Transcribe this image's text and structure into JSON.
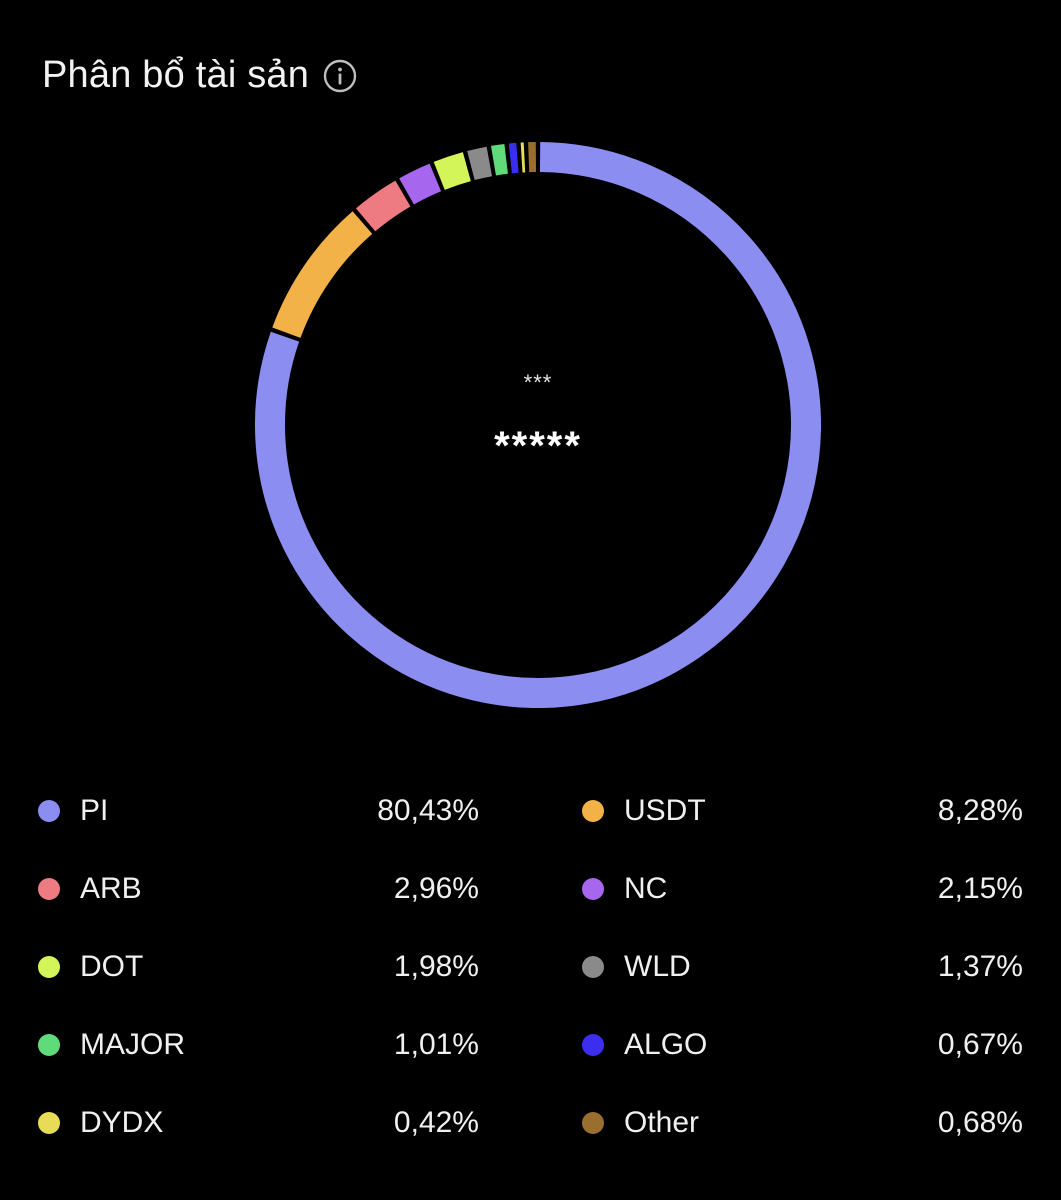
{
  "header": {
    "title": "Phân bổ tài sản",
    "info_icon": "info-circle-icon"
  },
  "center": {
    "label": "***",
    "value": "*****"
  },
  "colors": {
    "background": "#000000",
    "gap": "#000000"
  },
  "chart_data": {
    "type": "pie",
    "title": "",
    "categories": [
      "PI",
      "USDT",
      "ARB",
      "NC",
      "DOT",
      "WLD",
      "MAJOR",
      "ALGO",
      "DYDX",
      "Other"
    ],
    "values": [
      80.43,
      8.28,
      2.96,
      2.15,
      1.98,
      1.37,
      1.01,
      0.67,
      0.42,
      0.68
    ],
    "colors": [
      "#8b8ef0",
      "#f2b247",
      "#ef7b82",
      "#a667ee",
      "#d3f55a",
      "#8a8a8a",
      "#5fdb7a",
      "#3b2ef0",
      "#e8db55",
      "#9a6e2e"
    ],
    "style": "donut",
    "start": "top",
    "direction": "clockwise"
  },
  "legend": {
    "items": [
      {
        "name": "PI",
        "pct": "80,43%",
        "color": "#8b8ef0"
      },
      {
        "name": "USDT",
        "pct": "8,28%",
        "color": "#f2b247"
      },
      {
        "name": "ARB",
        "pct": "2,96%",
        "color": "#ef7b82"
      },
      {
        "name": "NC",
        "pct": "2,15%",
        "color": "#a667ee"
      },
      {
        "name": "DOT",
        "pct": "1,98%",
        "color": "#d3f55a"
      },
      {
        "name": "WLD",
        "pct": "1,37%",
        "color": "#8a8a8a"
      },
      {
        "name": "MAJOR",
        "pct": "1,01%",
        "color": "#5fdb7a"
      },
      {
        "name": "ALGO",
        "pct": "0,67%",
        "color": "#3b2ef0"
      },
      {
        "name": "DYDX",
        "pct": "0,42%",
        "color": "#e8db55"
      },
      {
        "name": "Other",
        "pct": "0,68%",
        "color": "#9a6e2e"
      }
    ]
  }
}
